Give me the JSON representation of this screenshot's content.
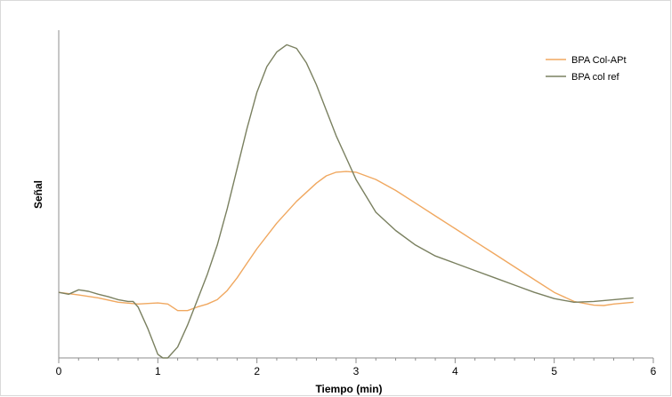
{
  "chart_data": {
    "type": "line",
    "title": "",
    "xlabel": "Tiempo (min)",
    "ylabel": "Señal",
    "xlim": [
      0,
      6
    ],
    "ylim": [
      -0.18,
      0.72
    ],
    "x_ticks": [
      0,
      1,
      2,
      3,
      4,
      5,
      6
    ],
    "grid": false,
    "legend_position": "top-right",
    "series": [
      {
        "name": "BPA Col-APt",
        "color": "#f0a860",
        "points": [
          [
            0,
            0.0
          ],
          [
            0.2,
            -0.007
          ],
          [
            0.4,
            -0.015
          ],
          [
            0.6,
            -0.027
          ],
          [
            0.8,
            -0.032
          ],
          [
            1.0,
            -0.029
          ],
          [
            1.1,
            -0.032
          ],
          [
            1.2,
            -0.05
          ],
          [
            1.3,
            -0.05
          ],
          [
            1.4,
            -0.04
          ],
          [
            1.5,
            -0.032
          ],
          [
            1.6,
            -0.02
          ],
          [
            1.7,
            0.005
          ],
          [
            1.8,
            0.04
          ],
          [
            1.9,
            0.08
          ],
          [
            2.0,
            0.12
          ],
          [
            2.2,
            0.19
          ],
          [
            2.4,
            0.25
          ],
          [
            2.6,
            0.3
          ],
          [
            2.7,
            0.32
          ],
          [
            2.8,
            0.33
          ],
          [
            2.9,
            0.332
          ],
          [
            3.0,
            0.33
          ],
          [
            3.2,
            0.31
          ],
          [
            3.4,
            0.28
          ],
          [
            3.6,
            0.245
          ],
          [
            3.8,
            0.21
          ],
          [
            4.0,
            0.175
          ],
          [
            4.2,
            0.14
          ],
          [
            4.4,
            0.105
          ],
          [
            4.6,
            0.07
          ],
          [
            4.8,
            0.035
          ],
          [
            5.0,
            0.0
          ],
          [
            5.2,
            -0.025
          ],
          [
            5.4,
            -0.035
          ],
          [
            5.5,
            -0.036
          ],
          [
            5.6,
            -0.032
          ],
          [
            5.8,
            -0.027
          ]
        ]
      },
      {
        "name": "BPA col ref",
        "color": "#7a8060",
        "points": [
          [
            0,
            0.0
          ],
          [
            0.1,
            -0.005
          ],
          [
            0.2,
            0.007
          ],
          [
            0.3,
            0.003
          ],
          [
            0.4,
            -0.005
          ],
          [
            0.5,
            -0.012
          ],
          [
            0.6,
            -0.02
          ],
          [
            0.7,
            -0.025
          ],
          [
            0.75,
            -0.025
          ],
          [
            0.8,
            -0.04
          ],
          [
            0.9,
            -0.1
          ],
          [
            1.0,
            -0.17
          ],
          [
            1.05,
            -0.18
          ],
          [
            1.1,
            -0.18
          ],
          [
            1.2,
            -0.15
          ],
          [
            1.3,
            -0.09
          ],
          [
            1.4,
            -0.02
          ],
          [
            1.5,
            0.05
          ],
          [
            1.6,
            0.13
          ],
          [
            1.7,
            0.23
          ],
          [
            1.8,
            0.34
          ],
          [
            1.9,
            0.45
          ],
          [
            2.0,
            0.55
          ],
          [
            2.1,
            0.62
          ],
          [
            2.2,
            0.66
          ],
          [
            2.3,
            0.68
          ],
          [
            2.4,
            0.67
          ],
          [
            2.5,
            0.63
          ],
          [
            2.6,
            0.57
          ],
          [
            2.7,
            0.5
          ],
          [
            2.8,
            0.43
          ],
          [
            2.9,
            0.37
          ],
          [
            3.0,
            0.31
          ],
          [
            3.2,
            0.22
          ],
          [
            3.4,
            0.17
          ],
          [
            3.6,
            0.13
          ],
          [
            3.8,
            0.1
          ],
          [
            4.0,
            0.08
          ],
          [
            4.2,
            0.06
          ],
          [
            4.4,
            0.04
          ],
          [
            4.6,
            0.02
          ],
          [
            4.8,
            0.0
          ],
          [
            5.0,
            -0.017
          ],
          [
            5.2,
            -0.027
          ],
          [
            5.4,
            -0.025
          ],
          [
            5.6,
            -0.02
          ],
          [
            5.8,
            -0.015
          ]
        ]
      }
    ]
  }
}
